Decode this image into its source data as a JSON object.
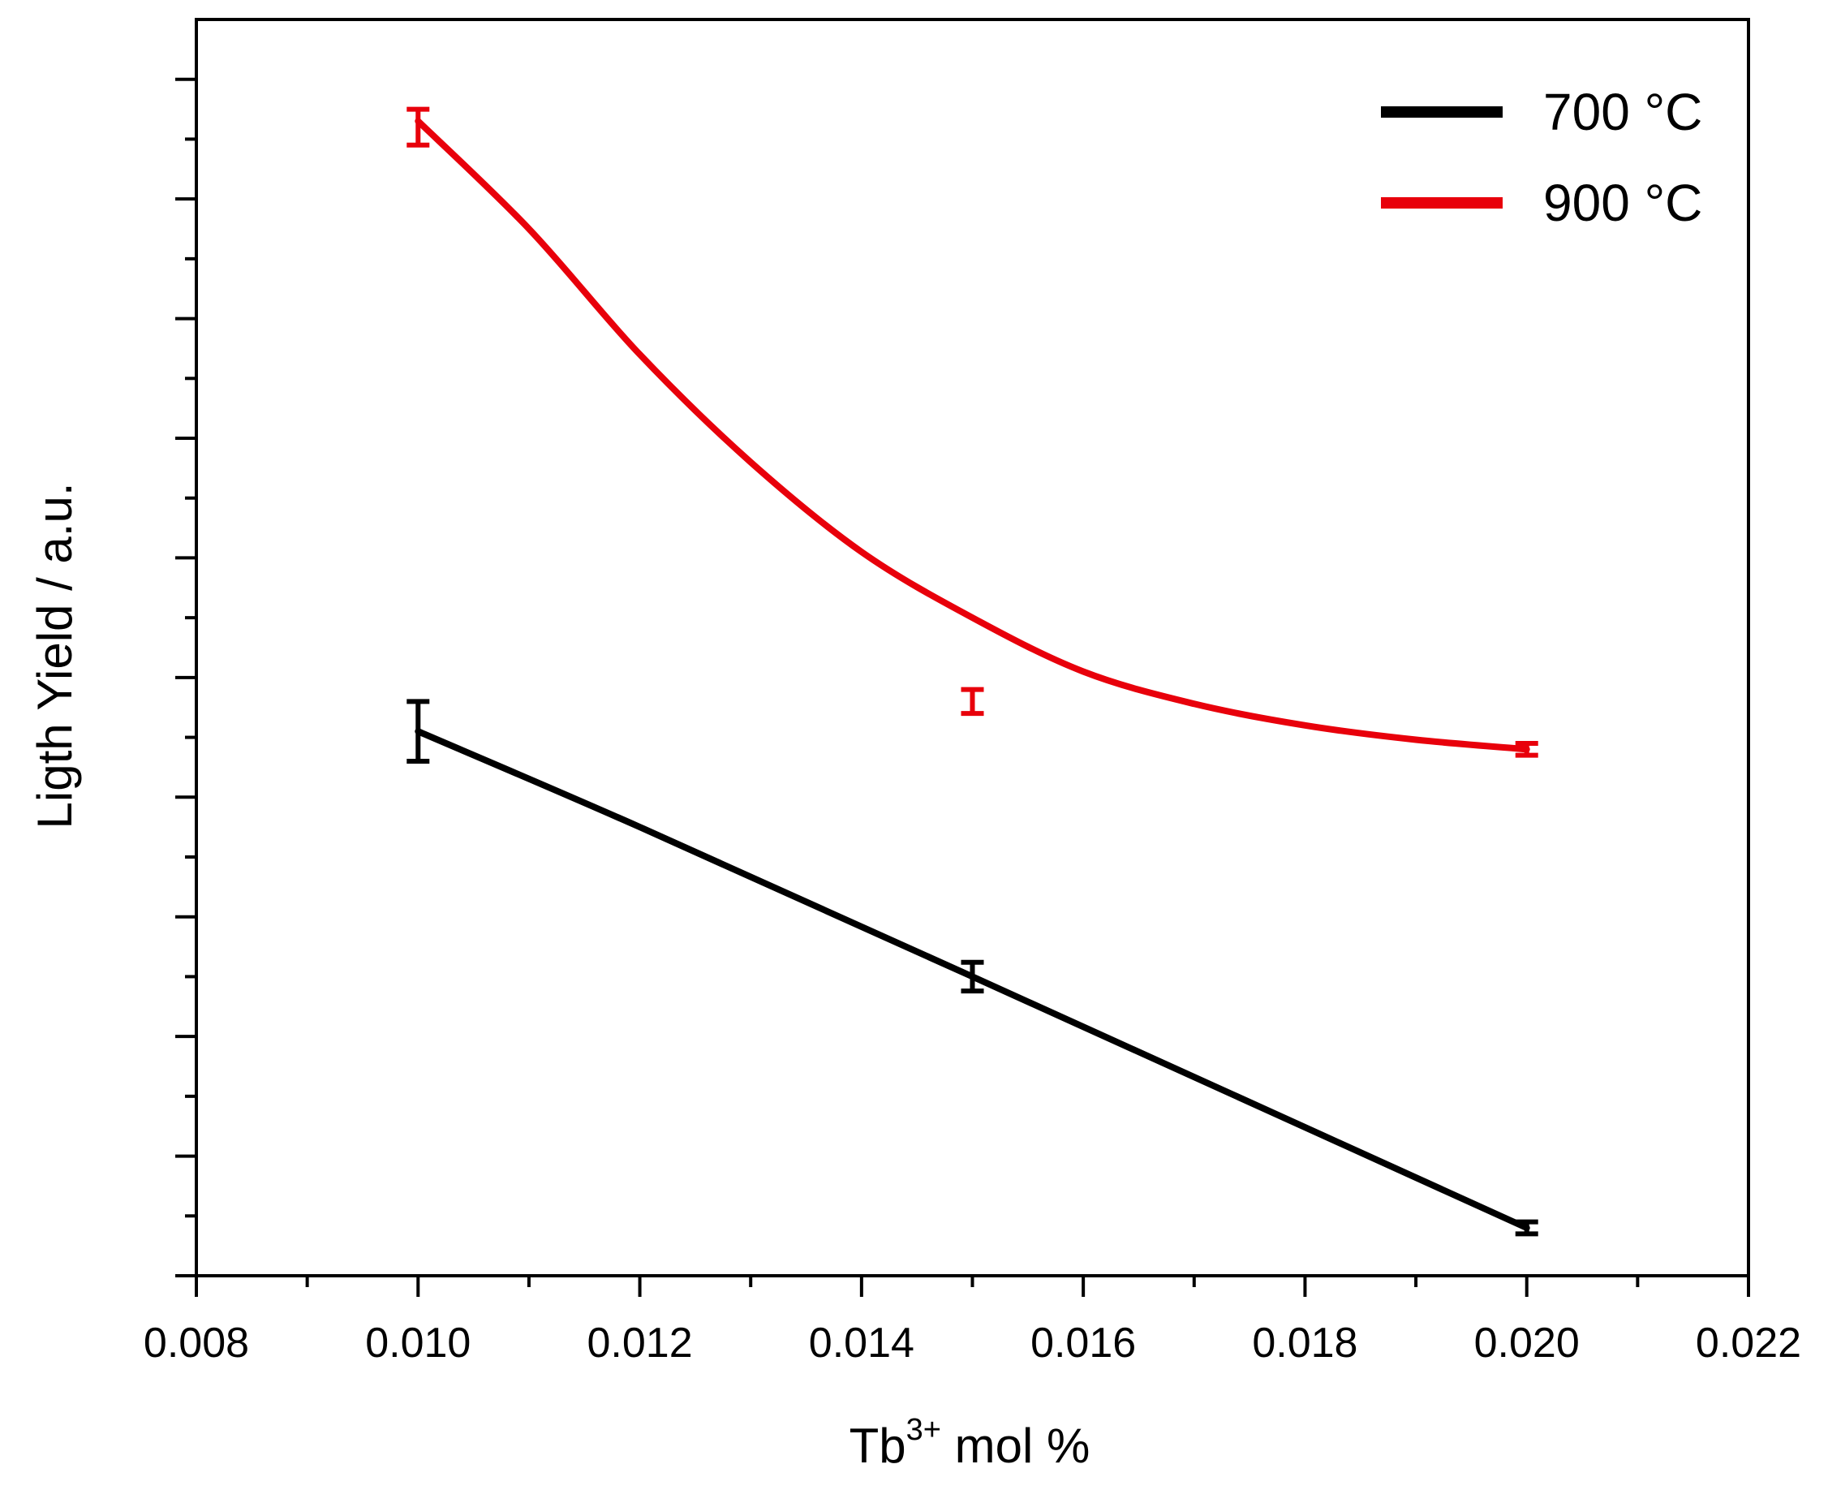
{
  "chart_data": {
    "type": "line",
    "title": "",
    "xlabel": {
      "base": "Tb",
      "superscript": "3+",
      "rest": " mol %"
    },
    "ylabel": "Ligth Yield / a.u.",
    "xlim": [
      0.008,
      0.022
    ],
    "ylim": [
      0,
      10.5
    ],
    "x_ticks": [
      "0.008",
      "0.010",
      "0.012",
      "0.014",
      "0.016",
      "0.018",
      "0.020",
      "0.022"
    ],
    "y_ticks_labeled": false,
    "y_major_tick_values": [
      0,
      1,
      2,
      3,
      4,
      5,
      6,
      7,
      8,
      9,
      10
    ],
    "legend_placement": "top-right",
    "grid": false,
    "series": [
      {
        "name": "700 °C",
        "color": "#000000",
        "points": [
          {
            "x": 0.01,
            "y": 4.55,
            "err": 0.25
          },
          {
            "x": 0.015,
            "y": 2.5,
            "err": 0.12
          },
          {
            "x": 0.02,
            "y": 0.4,
            "err": 0.05
          }
        ],
        "curve": [
          [
            0.01,
            4.55
          ],
          [
            0.012,
            3.75
          ],
          [
            0.015,
            2.5
          ],
          [
            0.02,
            0.4
          ]
        ]
      },
      {
        "name": "900 °C",
        "color": "#e8000b",
        "points": [
          {
            "x": 0.01,
            "y": 9.6,
            "err": 0.15
          },
          {
            "x": 0.015,
            "y": 4.8,
            "err": 0.1
          },
          {
            "x": 0.02,
            "y": 4.4,
            "err": 0.05
          }
        ],
        "curve": [
          [
            0.01,
            9.65
          ],
          [
            0.011,
            8.75
          ],
          [
            0.012,
            7.7
          ],
          [
            0.013,
            6.8
          ],
          [
            0.014,
            6.05
          ],
          [
            0.015,
            5.5
          ],
          [
            0.016,
            5.05
          ],
          [
            0.017,
            4.78
          ],
          [
            0.018,
            4.6
          ],
          [
            0.019,
            4.48
          ],
          [
            0.02,
            4.4
          ]
        ]
      }
    ]
  }
}
